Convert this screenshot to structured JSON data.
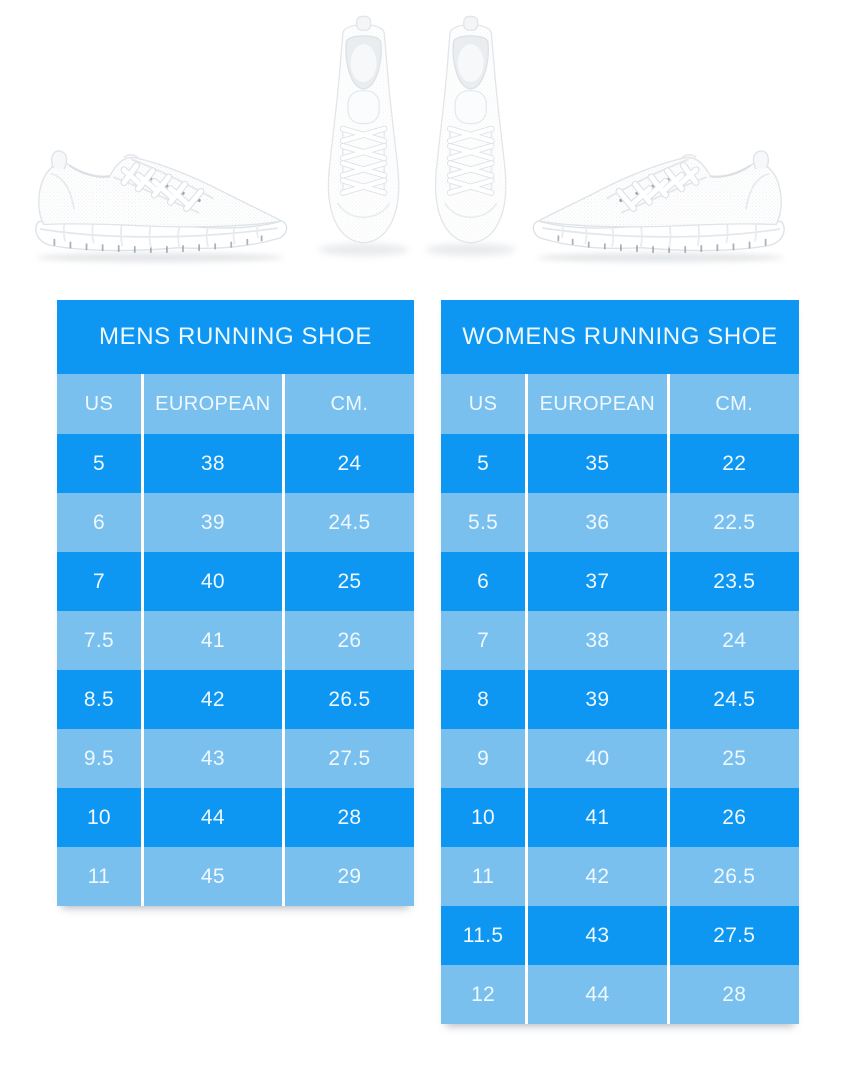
{
  "colors": {
    "row-dark": "#0d96f2",
    "row-light": "#7ac0ef",
    "cell-text": "#eef8fe",
    "page-bg": "#ffffff"
  },
  "images": {
    "left_shoe": "white running shoe, side view, toe facing right",
    "pair_top": "pair of white running shoes, top view",
    "right_shoe": "white running shoe, side view, toe facing left"
  },
  "tables": [
    {
      "title": "MENS RUNNING SHOE",
      "columns": [
        "US",
        "EUROPEAN",
        "CM."
      ],
      "rows": [
        [
          "5",
          "38",
          "24"
        ],
        [
          "6",
          "39",
          "24.5"
        ],
        [
          "7",
          "40",
          "25"
        ],
        [
          "7.5",
          "41",
          "26"
        ],
        [
          "8.5",
          "42",
          "26.5"
        ],
        [
          "9.5",
          "43",
          "27.5"
        ],
        [
          "10",
          "44",
          "28"
        ],
        [
          "11",
          "45",
          "29"
        ]
      ]
    },
    {
      "title": "WOMENS RUNNING SHOE",
      "columns": [
        "US",
        "EUROPEAN",
        "CM."
      ],
      "rows": [
        [
          "5",
          "35",
          "22"
        ],
        [
          "5.5",
          "36",
          "22.5"
        ],
        [
          "6",
          "37",
          "23.5"
        ],
        [
          "7",
          "38",
          "24"
        ],
        [
          "8",
          "39",
          "24.5"
        ],
        [
          "9",
          "40",
          "25"
        ],
        [
          "10",
          "41",
          "26"
        ],
        [
          "11",
          "42",
          "26.5"
        ],
        [
          "11.5",
          "43",
          "27.5"
        ],
        [
          "12",
          "44",
          "28"
        ]
      ]
    }
  ]
}
